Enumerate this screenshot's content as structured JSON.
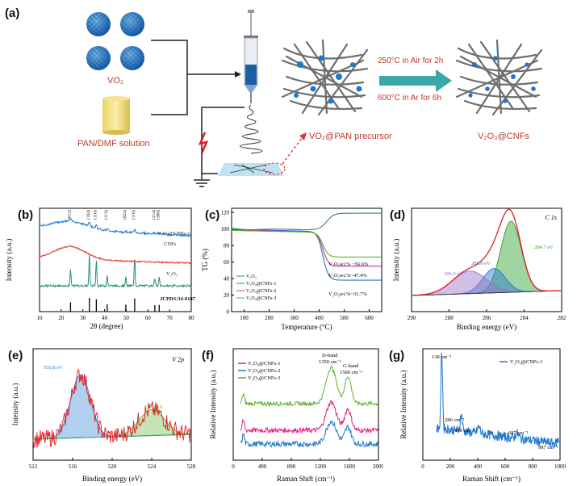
{
  "panel_a": {
    "label": "(a)",
    "vo2_label": "VO₂",
    "solution_label": "PAN/DMF solution",
    "precursor_label": "VO₂@PAN precursor",
    "step1": "250°C in Air  for 2h",
    "step2": "600°C in  Ar for 6h",
    "product_label": "V₂O₃@CNFs"
  },
  "panel_labels": [
    "(b)",
    "(c)",
    "(d)",
    "(e)",
    "(f)",
    "(g)"
  ],
  "chart_data": [
    {
      "panel": "b",
      "type": "line",
      "title": "",
      "xlabel": "2θ (degree)",
      "ylabel": "Intensity (a.u.)",
      "xlim": [
        10,
        80
      ],
      "xticks": [
        "10",
        "20",
        "30",
        "40",
        "50",
        "60",
        "70",
        "80"
      ],
      "series": [
        {
          "name": "V₂O₃@CNFs-1",
          "color": "#1f77d0"
        },
        {
          "name": "CNFs",
          "color": "#e8473a"
        },
        {
          "name": "V₂O₃",
          "color": "#2a8a7a"
        }
      ],
      "reference": "JCPDS:34-0187",
      "peak_labels": [
        "(012)",
        "(104)",
        "(110)",
        "(113)",
        "(024)",
        "(116)",
        "(214)",
        "(300)"
      ],
      "peak_positions": [
        24.3,
        33.0,
        36.2,
        41.2,
        49.8,
        53.9,
        63.2,
        65.2
      ]
    },
    {
      "panel": "c",
      "type": "line",
      "title": "",
      "xlabel": "Temperature (°C)",
      "ylabel": "TG (%)",
      "xlim": [
        50,
        650
      ],
      "ylim": [
        0,
        125
      ],
      "xticks": [
        "100",
        "200",
        "300",
        "400",
        "500",
        "600"
      ],
      "yticks": [
        "0",
        "20",
        "40",
        "60",
        "80",
        "100",
        "120"
      ],
      "series": [
        {
          "name": "V₂O₃",
          "color": "#2a8a7a",
          "final": 119
        },
        {
          "name": "V₂O₃@CNFs-1",
          "color": "#1f77d0",
          "final": 38
        },
        {
          "name": "V₂O₃@CNFs-2",
          "color": "#c2359a",
          "final": 55
        },
        {
          "name": "V₂O₃@CNFs-3",
          "color": "#5cb32f",
          "final": 66
        }
      ],
      "annotations": [
        "V₂O₃wt.% ~56.6%",
        "V₂O₃wt.%~47.4%",
        "V₂O₃wt.%~31.7%"
      ]
    },
    {
      "panel": "d",
      "type": "line",
      "title": "C 1s",
      "xlabel": "Binding energy (eV)",
      "ylabel": "Intensity (a.u.)",
      "xlim": [
        290,
        282
      ],
      "xticks": [
        "290",
        "288",
        "286",
        "284",
        "282"
      ],
      "peaks": [
        {
          "label": "284.7 eV",
          "center": 284.7,
          "color": "#2ca02c"
        },
        {
          "label": "285.6 eV",
          "center": 285.6,
          "color": "#1f77d0"
        },
        {
          "label": "286.9 eV",
          "center": 286.9,
          "color": "#9b72c8"
        }
      ]
    },
    {
      "panel": "e",
      "type": "line",
      "title": "V 2p",
      "xlabel": "Binding energy (eV)",
      "ylabel": "Intensity (a.u.)",
      "xlim": [
        512,
        528
      ],
      "xticks": [
        "512",
        "516",
        "520",
        "524",
        "528"
      ],
      "peaks": [
        {
          "label": "516.8 eV",
          "center": 516.8,
          "color": "#1f77d0"
        },
        {
          "label": "524.0 eV",
          "center": 524.0,
          "color": "#5cb32f"
        }
      ]
    },
    {
      "panel": "f",
      "type": "line",
      "title": "",
      "xlabel": "Raman Shift (cm⁻¹)",
      "ylabel": "Relative Intensity (a.u.)",
      "xlim": [
        0,
        2000
      ],
      "xticks": [
        "0",
        "400",
        "800",
        "1200",
        "1600",
        "2000"
      ],
      "series": [
        {
          "name": "V₂O₃@CNFs-1",
          "color": "#e6207a"
        },
        {
          "name": "V₂O₃@CNFs-2",
          "color": "#1f77d0"
        },
        {
          "name": "V₂O₃@CNFs-3",
          "color": "#5cb32f"
        }
      ],
      "annotations": [
        "D-band",
        "1350 cm⁻¹",
        "G-band",
        "1580 cm⁻¹"
      ]
    },
    {
      "panel": "g",
      "type": "line",
      "title": "",
      "xlabel": "Raman Shift (cm⁻¹)",
      "ylabel": "Relative Intensity (a.u.)",
      "xlim": [
        0,
        1000
      ],
      "xticks": [
        "0",
        "200",
        "400",
        "600",
        "800",
        "1000"
      ],
      "series": [
        {
          "name": "V₂O₃@CNFs-1",
          "color": "#1f77d0"
        }
      ],
      "annotations": [
        "138 cm⁻¹",
        "280 cm⁻¹",
        "408 cm⁻¹",
        "687 cm⁻¹",
        "987 cm⁻¹"
      ]
    }
  ]
}
